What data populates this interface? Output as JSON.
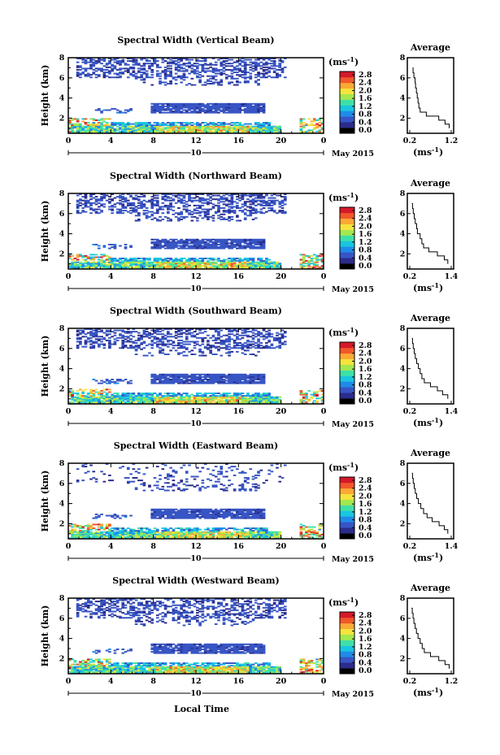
{
  "figure": {
    "month_label": "May 2015",
    "date_label": "10",
    "xlabel": "Local Time",
    "x_ticks": [
      "0",
      "4",
      "8",
      "12",
      "16",
      "20",
      "0"
    ],
    "height_ticks": [
      "2",
      "4",
      "6",
      "8"
    ],
    "ylabel": "Height (km)",
    "colorbar": {
      "unit": "(ms",
      "unit_exp": "-1",
      "unit_close": ")",
      "ticks": [
        "0.0",
        "0.4",
        "0.8",
        "1.2",
        "1.6",
        "2.0",
        "2.4",
        "2.8"
      ],
      "colors": [
        "#000000",
        "#2b2c8c",
        "#3755c4",
        "#1f8be8",
        "#19c6e0",
        "#3fe0a8",
        "#a4e84d",
        "#f5e43c",
        "#fba935",
        "#f2572a",
        "#d6192a"
      ]
    },
    "avg_title": "Average",
    "avg_xlabel": "(ms",
    "avg_xlabel_exp": "-1",
    "avg_xlabel_close": ")",
    "avg_yticks": [
      "2",
      "4",
      "6",
      "8"
    ]
  },
  "chart_data": [
    {
      "type": "heatmap",
      "title": "Spectral Width (Vertical Beam)",
      "beam": "vertical",
      "xlim": [
        0,
        24
      ],
      "ylim": [
        0.5,
        8
      ],
      "color_range": [
        0.0,
        2.8
      ],
      "profile": {
        "type": "line",
        "xlim": [
          0.2,
          1.2
        ],
        "x_ticks": [
          "0.2",
          "1.2"
        ],
        "heights": [
          1.0,
          1.4,
          1.8,
          2.2,
          2.6,
          3.0,
          3.5,
          4.0,
          4.5,
          5.0,
          5.5,
          6.0,
          6.5,
          7.0
        ],
        "values": [
          1.15,
          1.05,
          0.9,
          0.6,
          0.45,
          0.42,
          0.4,
          0.38,
          0.36,
          0.34,
          0.33,
          0.3,
          0.28,
          0.27
        ]
      }
    },
    {
      "type": "heatmap",
      "title": "Spectral Width (Northward Beam)",
      "beam": "northward",
      "xlim": [
        0,
        24
      ],
      "ylim": [
        0.5,
        8
      ],
      "color_range": [
        0.0,
        2.8
      ],
      "profile": {
        "type": "line",
        "xlim": [
          0.2,
          1.4
        ],
        "x_ticks": [
          "0.2",
          "1.4"
        ],
        "heights": [
          1.0,
          1.4,
          1.8,
          2.2,
          2.6,
          3.0,
          3.5,
          4.0,
          4.5,
          5.0,
          5.5,
          6.0,
          6.5,
          7.0
        ],
        "values": [
          1.3,
          1.2,
          1.0,
          0.75,
          0.6,
          0.55,
          0.5,
          0.42,
          0.4,
          0.36,
          0.33,
          0.3,
          0.28,
          0.26
        ]
      }
    },
    {
      "type": "heatmap",
      "title": "Spectral Width (Southward Beam)",
      "beam": "southward",
      "xlim": [
        0,
        24
      ],
      "ylim": [
        0.5,
        8
      ],
      "color_range": [
        0.0,
        2.8
      ],
      "profile": {
        "type": "line",
        "xlim": [
          0.2,
          1.4
        ],
        "x_ticks": [
          "0.2",
          "1.4"
        ],
        "heights": [
          1.0,
          1.4,
          1.8,
          2.2,
          2.6,
          3.0,
          3.5,
          4.0,
          4.5,
          5.0,
          5.5,
          6.0,
          6.5,
          7.0
        ],
        "values": [
          1.3,
          1.15,
          1.0,
          0.8,
          0.62,
          0.55,
          0.5,
          0.45,
          0.4,
          0.36,
          0.33,
          0.3,
          0.28,
          0.26
        ]
      }
    },
    {
      "type": "heatmap",
      "title": "Spectral Width (Eastward Beam)",
      "beam": "eastward",
      "xlim": [
        0,
        24
      ],
      "ylim": [
        0.5,
        8
      ],
      "color_range": [
        0.0,
        2.8
      ],
      "profile": {
        "type": "line",
        "xlim": [
          0.2,
          1.4
        ],
        "x_ticks": [
          "0.2",
          "1.4"
        ],
        "heights": [
          1.0,
          1.4,
          1.8,
          2.2,
          2.6,
          3.0,
          3.5,
          4.0,
          4.5,
          5.0,
          5.5,
          6.0,
          6.5,
          7.0
        ],
        "values": [
          1.3,
          1.2,
          1.05,
          0.85,
          0.7,
          0.6,
          0.52,
          0.45,
          0.4,
          0.36,
          0.33,
          0.3,
          0.28,
          0.26
        ]
      }
    },
    {
      "type": "heatmap",
      "title": "Spectral Width (Westward Beam)",
      "beam": "westward",
      "xlim": [
        0,
        24
      ],
      "ylim": [
        0.5,
        8
      ],
      "color_range": [
        0.0,
        2.8
      ],
      "profile": {
        "type": "line",
        "xlim": [
          0.2,
          1.2
        ],
        "x_ticks": [
          "0.2",
          "1.2"
        ],
        "heights": [
          1.0,
          1.4,
          1.8,
          2.2,
          2.6,
          3.0,
          3.5,
          4.0,
          4.5,
          5.0,
          5.5,
          6.0,
          6.5,
          7.0
        ],
        "values": [
          1.15,
          1.05,
          0.9,
          0.7,
          0.55,
          0.5,
          0.45,
          0.4,
          0.36,
          0.33,
          0.3,
          0.28,
          0.26,
          0.24
        ]
      }
    }
  ]
}
